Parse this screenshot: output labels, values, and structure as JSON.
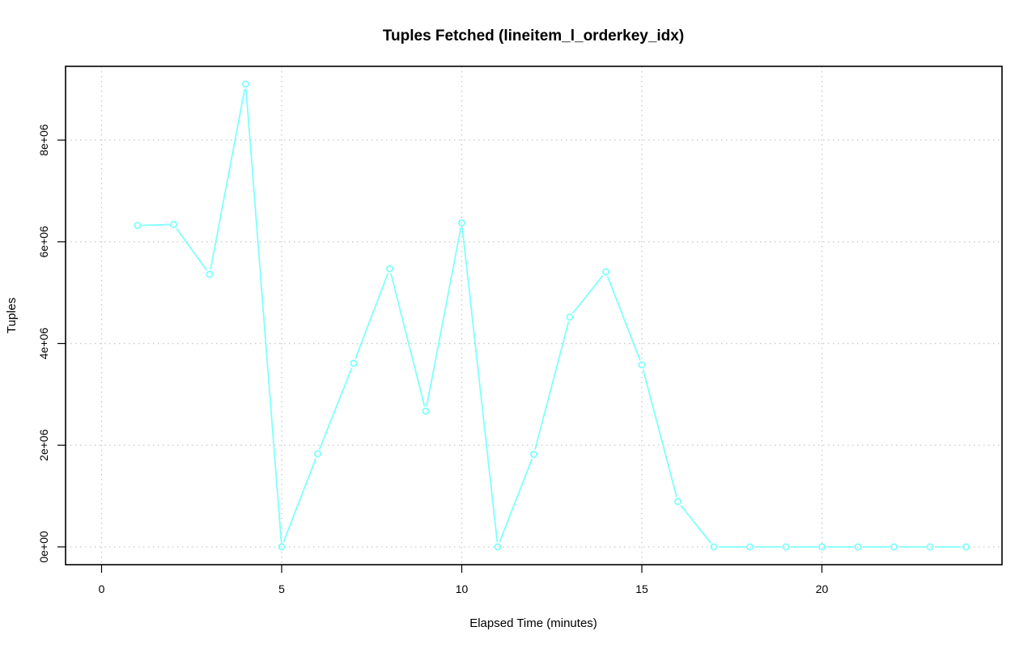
{
  "chart_data": {
    "type": "line",
    "title": "Tuples Fetched (lineitem_l_orderkey_idx)",
    "xlabel": "Elapsed Time (minutes)",
    "ylabel": "Tuples",
    "xlim": [
      -1,
      25
    ],
    "ylim": [
      -350000,
      9450000
    ],
    "x_ticks": [
      0,
      5,
      10,
      15,
      20
    ],
    "x_tick_labels": [
      "0",
      "5",
      "10",
      "15",
      "20"
    ],
    "y_ticks": [
      0,
      2000000,
      4000000,
      6000000,
      8000000
    ],
    "y_tick_labels": [
      "0e+00",
      "2e+06",
      "4e+06",
      "6e+06",
      "8e+06"
    ],
    "grid": true,
    "series": [
      {
        "color": "#7fffff",
        "marker": "open-circle",
        "x": [
          1,
          2,
          3,
          4,
          5,
          6,
          7,
          8,
          9,
          10,
          11,
          12,
          13,
          14,
          15,
          16,
          17,
          18,
          19,
          20,
          21,
          22,
          23,
          24
        ],
        "y": [
          6320000,
          6340000,
          5360000,
          9100000,
          0,
          1830000,
          3610000,
          5470000,
          2670000,
          6370000,
          0,
          1820000,
          4520000,
          5410000,
          3580000,
          890000,
          0,
          0,
          0,
          0,
          0,
          0,
          0,
          0
        ]
      }
    ]
  }
}
